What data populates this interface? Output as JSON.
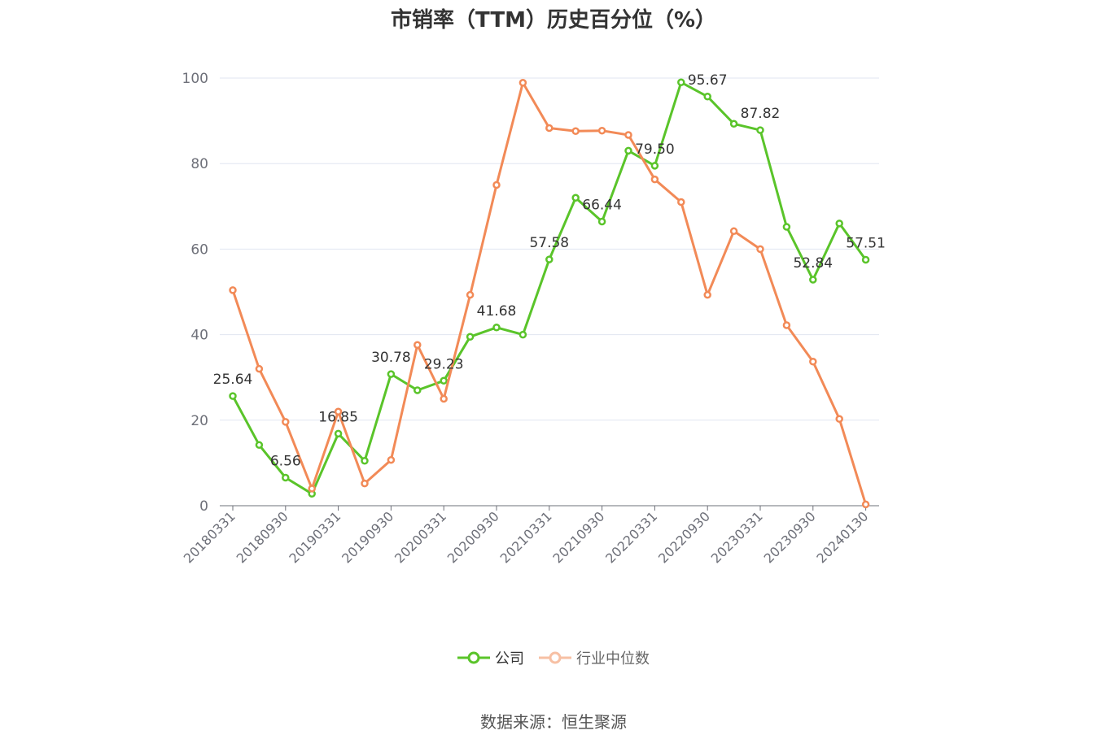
{
  "chart_data": {
    "type": "line",
    "title": "市销率（TTM）历史百分位（%）",
    "xlabel": "",
    "ylabel": "",
    "ylim": [
      0,
      100
    ],
    "yticks": [
      0,
      20,
      40,
      60,
      80,
      100
    ],
    "categories": [
      "20180331",
      "20180630",
      "20180930",
      "20181231",
      "20190331",
      "20190630",
      "20190930",
      "20191231",
      "20200331",
      "20200630",
      "20200930",
      "20201231",
      "20210331",
      "20210630",
      "20210930",
      "20211231",
      "20220331",
      "20220630",
      "20220930",
      "20221231",
      "20230331",
      "20230630",
      "20230930",
      "20231231",
      "20240130"
    ],
    "tick_labels": [
      "20180331",
      "20180930",
      "20190331",
      "20190930",
      "20200331",
      "20200930",
      "20210331",
      "20210930",
      "20220331",
      "20220930",
      "20230331",
      "20230930",
      "20240130"
    ],
    "grid": true,
    "legend_position": "bottom-center",
    "series": [
      {
        "name": "公司",
        "color": "#5ac42a",
        "values": [
          25.64,
          14.2,
          6.56,
          2.8,
          16.85,
          10.5,
          30.78,
          27.0,
          29.23,
          39.5,
          41.68,
          40.0,
          57.58,
          72.0,
          66.44,
          83.0,
          79.5,
          99.0,
          95.67,
          89.3,
          87.82,
          65.2,
          52.84,
          66.0,
          57.51
        ],
        "labels": {
          "0": "25.64",
          "2": "6.56",
          "4": "16.85",
          "6": "30.78",
          "8": "29.23",
          "10": "41.68",
          "12": "57.58",
          "14": "66.44",
          "16": "79.50",
          "18": "95.67",
          "20": "87.82",
          "22": "52.84",
          "24": "57.51"
        }
      },
      {
        "name": "行业中位数",
        "color": "#f28a57",
        "values": [
          50.4,
          32.0,
          19.6,
          4.0,
          22.0,
          5.2,
          10.7,
          37.6,
          25.0,
          49.3,
          75.0,
          98.9,
          88.3,
          87.6,
          87.7,
          86.7,
          76.3,
          71.0,
          49.3,
          64.2,
          60.0,
          42.2,
          33.7,
          20.3,
          0.3
        ]
      }
    ]
  },
  "source": "数据来源：恒生聚源"
}
